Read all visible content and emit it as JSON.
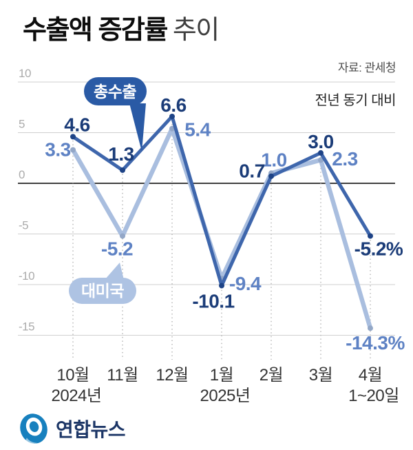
{
  "header": {
    "title_bold": "수출액 증감률",
    "title_light": "추이",
    "source": "자료: 관세청",
    "subtitle": "전년 동기 대비"
  },
  "chart_data": {
    "type": "line",
    "title": "수출액 증감률 추이",
    "unit": "%",
    "subtitle": "전년 동기 대비",
    "source": "자료: 관세청",
    "categories": [
      "10월",
      "11월",
      "12월",
      "1월",
      "2월",
      "3월",
      "4월"
    ],
    "category_sublabels": [
      "2024년",
      "",
      "",
      "2025년",
      "",
      "",
      "1~20일"
    ],
    "y_ticks": [
      10,
      5,
      0,
      -5,
      -10,
      -15
    ],
    "ylim": [
      -17,
      11
    ],
    "grid": "horizontal",
    "legend_position": "inline-bubbles",
    "series": [
      {
        "name": "총수출",
        "values": [
          4.6,
          1.3,
          6.6,
          -10.1,
          0.7,
          3.0,
          -5.2
        ],
        "labels": [
          "4.6",
          "1.3",
          "6.6",
          "-10.1",
          "0.7",
          "3.0",
          "-5.2%"
        ],
        "color": "#3E66AC",
        "dot_color": "#1E4386",
        "label_color": "#1B3C78",
        "bubble_color": "#2A5AA5"
      },
      {
        "name": "대미국",
        "values": [
          3.3,
          -5.2,
          5.4,
          -9.4,
          1.0,
          2.3,
          -14.3
        ],
        "labels": [
          "3.3",
          "-5.2",
          "5.4",
          "-9.4",
          "1.0",
          "2.3",
          "-14.3%"
        ],
        "color": "#A9BEDF",
        "dot_color": "#93A7C7",
        "label_color": "#5E82C4",
        "bubble_color": "#AEC3E3"
      }
    ],
    "annotations": [
      {
        "text": "총수출",
        "series": "총수출"
      },
      {
        "text": "대미국",
        "series": "대미국"
      }
    ],
    "colors": {
      "grid": "#cfcfcf",
      "zero_line": "#3f3f3f",
      "dotted_guide": "#b9b9b9",
      "tick_label": "#ababab",
      "axis_label": "#333333"
    }
  },
  "footer": {
    "brand": "연합뉴스",
    "logo": "yonhap-globe-icon"
  }
}
